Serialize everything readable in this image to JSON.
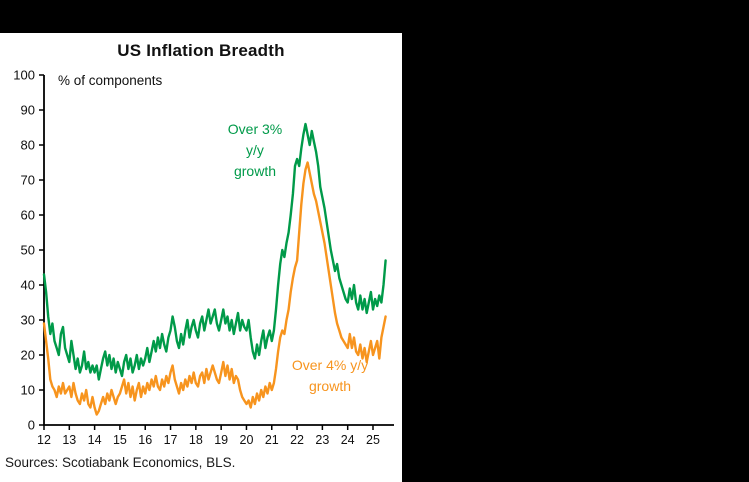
{
  "window": {
    "background": "#000000",
    "panel_background": "#ffffff"
  },
  "footer": {
    "sources": "Sources: Scotiabank Economics, BLS."
  },
  "chart_data": {
    "type": "line",
    "title": "US Inflation Breadth",
    "ylabel": "% of components",
    "ylim": [
      0,
      100
    ],
    "yticks": [
      0,
      10,
      20,
      30,
      40,
      50,
      60,
      70,
      80,
      90,
      100
    ],
    "x_range": [
      2012,
      2025.83
    ],
    "xtick_labels": [
      "12",
      "13",
      "14",
      "15",
      "16",
      "17",
      "18",
      "19",
      "20",
      "21",
      "22",
      "23",
      "24",
      "25"
    ],
    "xtick_years": [
      2012,
      2013,
      2014,
      2015,
      2016,
      2017,
      2018,
      2019,
      2020,
      2021,
      2022,
      2023,
      2024,
      2025
    ],
    "frequency": "monthly",
    "grid": false,
    "legend_position": "inline-annotations",
    "series": [
      {
        "name": "Over 3% y/y growth",
        "color": "#009a49",
        "start_year": 2012,
        "values": [
          43,
          38,
          31,
          26,
          29,
          24,
          22,
          20,
          26,
          28,
          22,
          20,
          18,
          24,
          20,
          16,
          19,
          15,
          17,
          21,
          16,
          18,
          15,
          17,
          15,
          17,
          13,
          16,
          19,
          21,
          17,
          20,
          16,
          19,
          15,
          18,
          16,
          14,
          18,
          20,
          16,
          19,
          15,
          17,
          20,
          16,
          19,
          17,
          19,
          22,
          18,
          21,
          24,
          21,
          25,
          22,
          26,
          23,
          21,
          25,
          27,
          31,
          28,
          24,
          22,
          26,
          23,
          27,
          30,
          25,
          28,
          30,
          27,
          25,
          29,
          31,
          27,
          30,
          33,
          29,
          31,
          33,
          29,
          27,
          30,
          33,
          29,
          31,
          27,
          30,
          26,
          29,
          32,
          27,
          30,
          28,
          27,
          30,
          25,
          21,
          19,
          23,
          20,
          24,
          27,
          22,
          25,
          27,
          24,
          27,
          33,
          40,
          46,
          50,
          48,
          52,
          55,
          60,
          66,
          74,
          76,
          74,
          79,
          83,
          86,
          83,
          80,
          84,
          81,
          78,
          74,
          68,
          65,
          62,
          58,
          54,
          50,
          47,
          44,
          46,
          42,
          40,
          38,
          36,
          35,
          39,
          36,
          40,
          35,
          33,
          37,
          33,
          36,
          32,
          35,
          38,
          33,
          36,
          34,
          37,
          35,
          40,
          47
        ]
      },
      {
        "name": "Over 4% y/y growth",
        "color": "#f7941e",
        "start_year": 2012,
        "values": [
          29,
          24,
          19,
          13,
          11,
          10,
          8,
          11,
          9,
          12,
          9,
          10,
          11,
          8,
          12,
          9,
          7,
          6,
          9,
          7,
          10,
          6,
          5,
          8,
          5,
          3,
          4,
          6,
          8,
          6,
          9,
          7,
          10,
          8,
          6,
          8,
          9,
          11,
          13,
          9,
          12,
          8,
          11,
          7,
          10,
          12,
          8,
          11,
          9,
          12,
          10,
          13,
          11,
          14,
          11,
          10,
          13,
          11,
          14,
          12,
          15,
          17,
          13,
          11,
          9,
          12,
          10,
          13,
          11,
          14,
          12,
          15,
          12,
          11,
          14,
          15,
          12,
          16,
          13,
          15,
          17,
          15,
          13,
          12,
          15,
          18,
          14,
          17,
          13,
          16,
          12,
          14,
          13,
          10,
          8,
          7,
          6,
          7,
          5,
          8,
          6,
          9,
          7,
          10,
          8,
          11,
          9,
          12,
          10,
          12,
          16,
          21,
          25,
          27,
          26,
          30,
          33,
          38,
          42,
          45,
          47,
          55,
          63,
          69,
          73,
          75,
          72,
          69,
          66,
          64,
          61,
          58,
          55,
          52,
          48,
          44,
          40,
          36,
          32,
          29,
          27,
          25,
          24,
          23,
          22,
          26,
          22,
          25,
          21,
          20,
          23,
          19,
          22,
          18,
          21,
          24,
          20,
          22,
          24,
          19,
          25,
          28,
          31
        ]
      }
    ],
    "annotations": {
      "green": {
        "text": "Over 3%\ny/y\ngrowth",
        "color": "#009a49"
      },
      "orange": {
        "text": "Over 4% y/y\ngrowth",
        "color": "#f7941e"
      }
    }
  }
}
